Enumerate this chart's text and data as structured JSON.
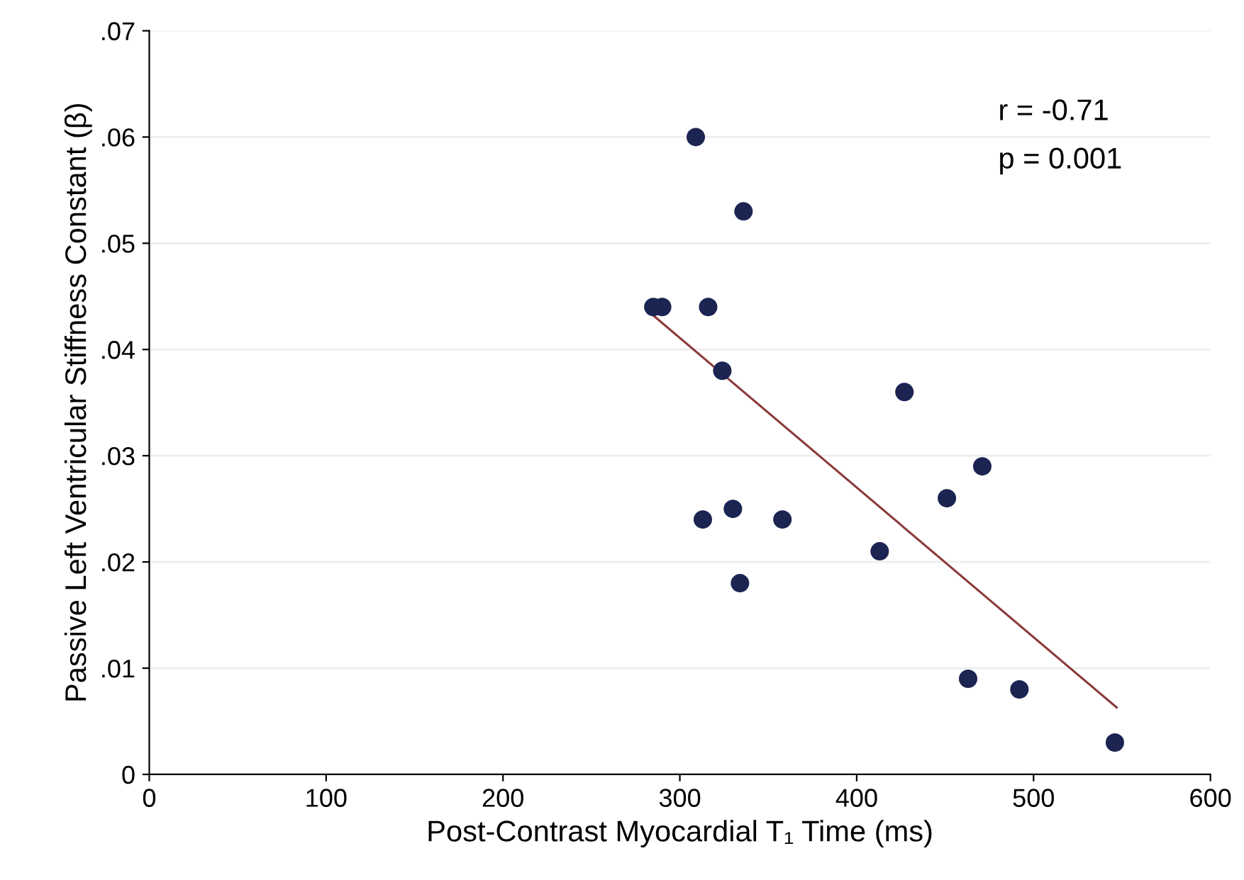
{
  "chart_data": {
    "type": "scatter",
    "xlabel": "Post-Contrast Myocardial T₁ Time (ms)",
    "ylabel": "Passive Left Ventricular Stiffness Constant (β)",
    "annotations": [
      "r = -0.71",
      "p = 0.001"
    ],
    "series": [
      {
        "color": "#1c2452",
        "marker": "circle",
        "x": [
          285,
          290,
          316,
          309,
          336,
          324,
          427,
          471,
          451,
          313,
          330,
          358,
          413,
          334,
          463,
          492,
          546
        ],
        "values": [
          0.044,
          0.044,
          0.044,
          0.06,
          0.053,
          0.038,
          0.036,
          0.029,
          0.026,
          0.024,
          0.025,
          0.024,
          0.021,
          0.018,
          0.009,
          0.008,
          0.003
        ]
      },
      {
        "type": "line",
        "color": "#8b3a3a",
        "x": [
          285,
          547
        ],
        "values": [
          0.0432,
          0.0063
        ]
      }
    ],
    "xlim": [
      0,
      600
    ],
    "xticks": [
      0,
      100,
      200,
      300,
      400,
      500,
      600
    ],
    "ylim": [
      0,
      0.07
    ],
    "yticks": [
      0,
      {
        "value": 0.01,
        "label": ".01"
      },
      {
        "value": 0.02,
        "label": ".02"
      },
      {
        "value": 0.03,
        "label": ".03"
      },
      {
        "value": 0.04,
        "label": ".04"
      },
      {
        "value": 0.05,
        "label": ".05"
      },
      {
        "value": 0.06,
        "label": ".06"
      },
      {
        "value": 0.07,
        "label": ".07"
      }
    ],
    "grid": "y",
    "legend": false
  }
}
